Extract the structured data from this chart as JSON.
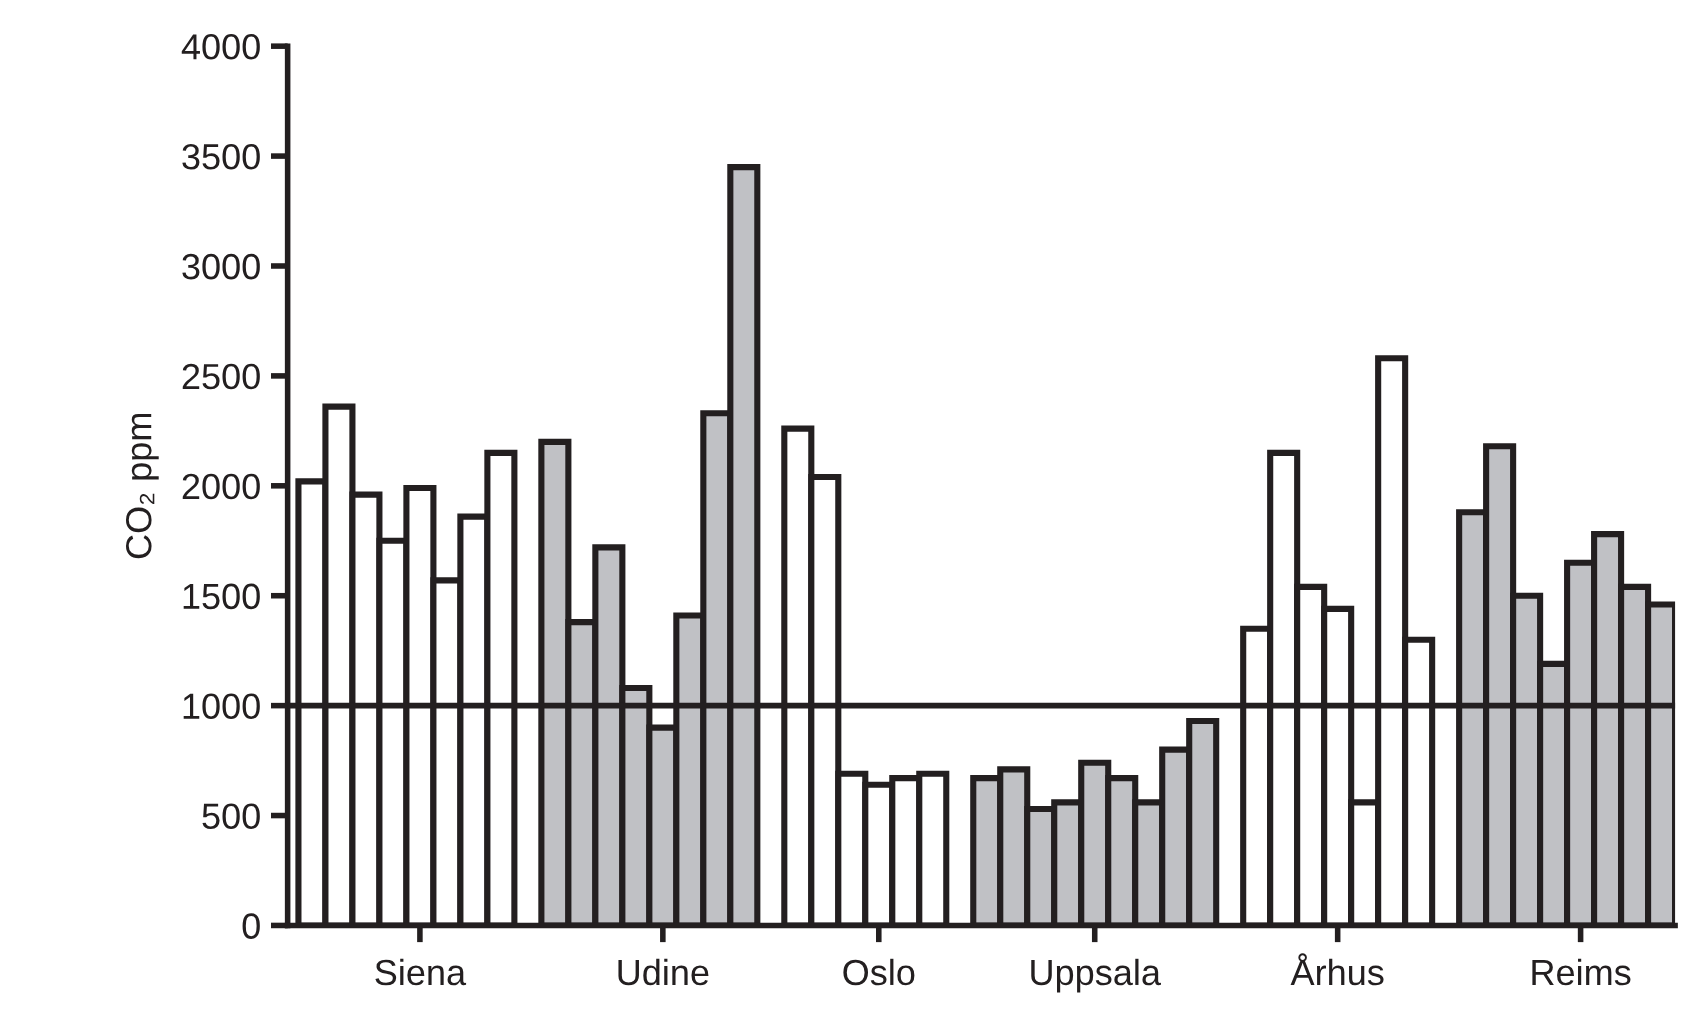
{
  "chart_data": {
    "type": "bar",
    "ylabel": "CO₂ ppm",
    "categories": [
      null,
      null,
      null,
      null,
      "Siena",
      null,
      null,
      null,
      null,
      null,
      null,
      null,
      null,
      "Udine",
      null,
      null,
      null,
      null,
      null,
      null,
      null,
      "Oslo",
      null,
      null,
      null,
      null,
      null,
      null,
      null,
      "Uppsala",
      null,
      null,
      null,
      null,
      null,
      null,
      null,
      null,
      "Århus",
      null,
      null,
      null,
      null,
      null,
      null,
      null,
      null,
      "Reims",
      null,
      null,
      null
    ],
    "values": [
      2020,
      2360,
      1960,
      1750,
      1990,
      1570,
      1860,
      2150,
      null,
      2200,
      1380,
      1720,
      1080,
      900,
      1410,
      2330,
      3450,
      null,
      2260,
      2040,
      690,
      640,
      670,
      690,
      null,
      670,
      710,
      530,
      560,
      740,
      670,
      560,
      800,
      930,
      null,
      1350,
      2150,
      1540,
      1440,
      560,
      2580,
      1300,
      null,
      1880,
      2180,
      1500,
      1190,
      1650,
      1780,
      1540,
      1460
    ],
    "colors": [
      "#ffffff",
      "#ffffff",
      "#ffffff",
      "#ffffff",
      "#ffffff",
      "#ffffff",
      "#ffffff",
      "#ffffff",
      null,
      "#c0c1c5",
      "#c0c1c5",
      "#c0c1c5",
      "#c0c1c5",
      "#c0c1c5",
      "#c0c1c5",
      "#c0c1c5",
      "#c0c1c5",
      null,
      "#ffffff",
      "#ffffff",
      "#ffffff",
      "#ffffff",
      "#ffffff",
      "#ffffff",
      null,
      "#c0c1c5",
      "#c0c1c5",
      "#c0c1c5",
      "#c0c1c5",
      "#c0c1c5",
      "#c0c1c5",
      "#c0c1c5",
      "#c0c1c5",
      "#c0c1c5",
      null,
      "#ffffff",
      "#ffffff",
      "#ffffff",
      "#ffffff",
      "#ffffff",
      "#ffffff",
      "#ffffff",
      null,
      "#c0c1c5",
      "#c0c1c5",
      "#c0c1c5",
      "#c0c1c5",
      "#c0c1c5",
      "#c0c1c5",
      "#c0c1c5",
      "#c0c1c5"
    ],
    "ylim": [
      0,
      4000
    ],
    "yticks": [
      0,
      500,
      1000,
      1500,
      2000,
      2500,
      3000,
      3500,
      4000
    ],
    "ref_lines": [
      {
        "axis": "y",
        "value": 1000,
        "color": "#231f20"
      }
    ],
    "grid": false,
    "legend": false
  }
}
